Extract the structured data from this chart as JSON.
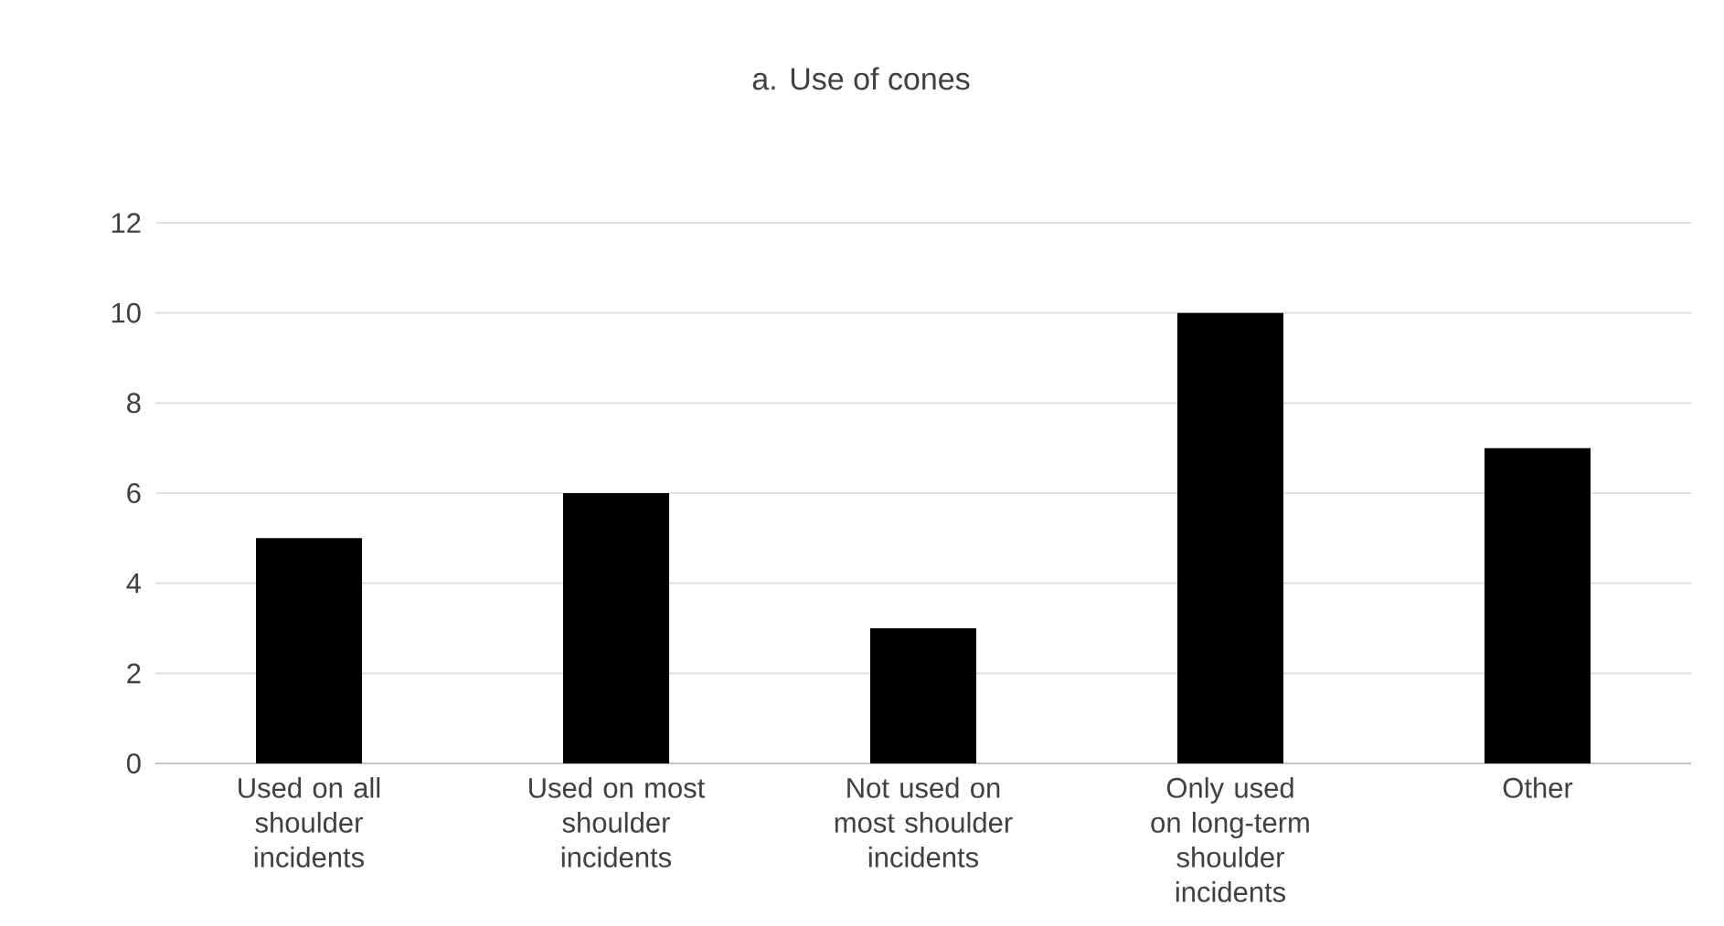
{
  "chart_data": {
    "type": "bar",
    "title": "a. Use of cones",
    "categories": [
      "Used on all shoulder incidents",
      "Used on most shoulder incidents",
      "Not used on most shoulder incidents",
      "Only used on long-term shoulder incidents",
      "Other"
    ],
    "values": [
      5,
      6,
      3,
      10,
      7
    ],
    "color": "#000000",
    "ylim": [
      0,
      12
    ],
    "yticks": [
      0,
      2,
      4,
      6,
      8,
      10,
      12
    ],
    "grid": "y"
  }
}
